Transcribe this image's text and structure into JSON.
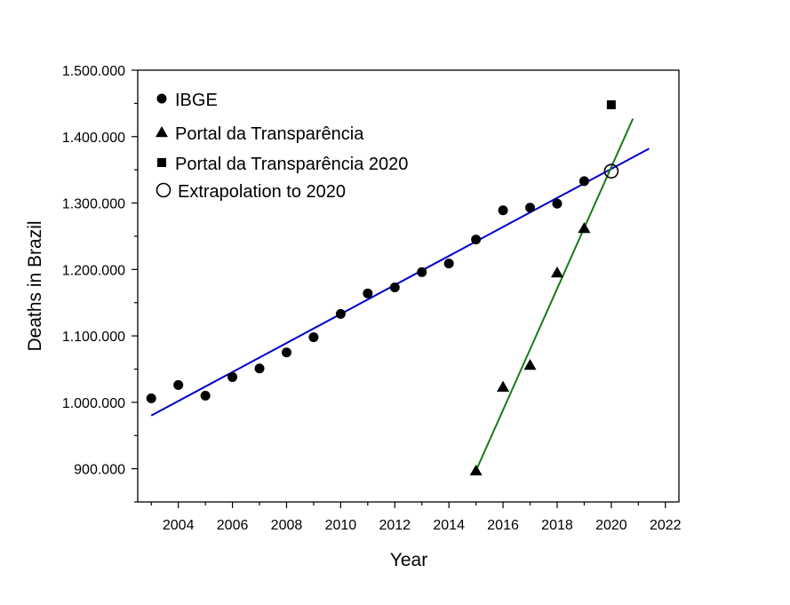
{
  "chart_data": {
    "type": "scatter",
    "xlabel": "Year",
    "ylabel": "Deaths in Brazil",
    "xlim": [
      2002.5,
      2022.5
    ],
    "ylim": [
      850000,
      1500000
    ],
    "x_ticks": [
      2004,
      2006,
      2008,
      2010,
      2012,
      2014,
      2016,
      2018,
      2020,
      2022
    ],
    "y_ticks": [
      900000,
      1000000,
      1100000,
      1200000,
      1300000,
      1400000,
      1500000
    ],
    "y_tick_labels": [
      "900.000",
      "1.000.000",
      "1.100.000",
      "1.200.000",
      "1.300.000",
      "1.400.000",
      "1.500.000"
    ],
    "legend_position": "top-left",
    "series": [
      {
        "name": "IBGE",
        "marker": "circle-filled",
        "color": "#000000",
        "points": [
          [
            2003,
            1006000
          ],
          [
            2004,
            1026000
          ],
          [
            2005,
            1010000
          ],
          [
            2006,
            1038000
          ],
          [
            2007,
            1051000
          ],
          [
            2008,
            1075000
          ],
          [
            2009,
            1098000
          ],
          [
            2010,
            1133000
          ],
          [
            2011,
            1164000
          ],
          [
            2012,
            1173000
          ],
          [
            2013,
            1196000
          ],
          [
            2014,
            1209000
          ],
          [
            2015,
            1245000
          ],
          [
            2016,
            1289000
          ],
          [
            2017,
            1293000
          ],
          [
            2018,
            1299000
          ],
          [
            2019,
            1333000
          ]
        ]
      },
      {
        "name": "Portal da Transparência",
        "marker": "triangle-filled",
        "color": "#000000",
        "points": [
          [
            2015,
            897000
          ],
          [
            2016,
            1023000
          ],
          [
            2017,
            1056000
          ],
          [
            2018,
            1195000
          ],
          [
            2019,
            1262000
          ]
        ]
      },
      {
        "name": "Portal da Transparência 2020",
        "marker": "square-filled",
        "color": "#000000",
        "points": [
          [
            2020,
            1448000
          ]
        ]
      },
      {
        "name": "Extrapolation to 2020",
        "marker": "circle-open",
        "color": "#000000",
        "points": [
          [
            2020,
            1348000
          ]
        ]
      }
    ],
    "fit_lines": [
      {
        "color": "#0000cc",
        "from": [
          2003,
          980000
        ],
        "to": [
          2021.4,
          1382000
        ]
      },
      {
        "color": "#1a7a1a",
        "from": [
          2015,
          897000
        ],
        "to": [
          2020.8,
          1427000
        ]
      }
    ]
  }
}
